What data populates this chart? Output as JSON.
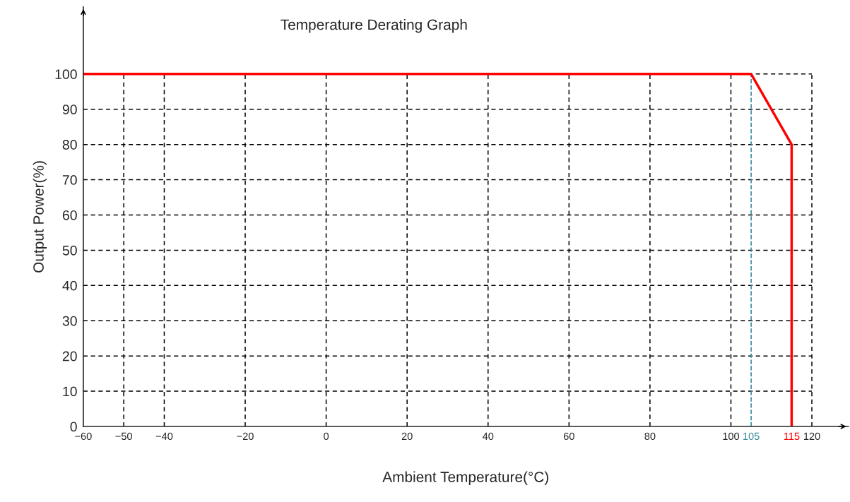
{
  "chart_data": {
    "type": "line",
    "title": "Temperature Derating Graph",
    "xlabel": "Ambient Temperature(°C)",
    "ylabel": "Output Power(%)",
    "series": [
      {
        "color": "#ff0000",
        "x": [
          -60,
          105,
          115,
          115
        ],
        "values": [
          100,
          100,
          80,
          0
        ]
      }
    ],
    "xlim": [
      -60,
      129
    ],
    "ylim": [
      0,
      119
    ],
    "xticks": [
      -60,
      -50,
      -40,
      -20,
      0,
      20,
      40,
      60,
      80,
      100,
      120
    ],
    "yticks": [
      0,
      10,
      20,
      30,
      40,
      50,
      60,
      70,
      80,
      90,
      100
    ],
    "ref_lines": [
      {
        "axis": "x",
        "value": 105,
        "label": "105",
        "color": "#3a8fa0",
        "line_style": "dashed"
      }
    ],
    "annotations": [
      {
        "text": "115",
        "x": 115,
        "y": 0
      }
    ],
    "grid": true,
    "legend": false,
    "marker": "none",
    "line_style": "solid"
  }
}
